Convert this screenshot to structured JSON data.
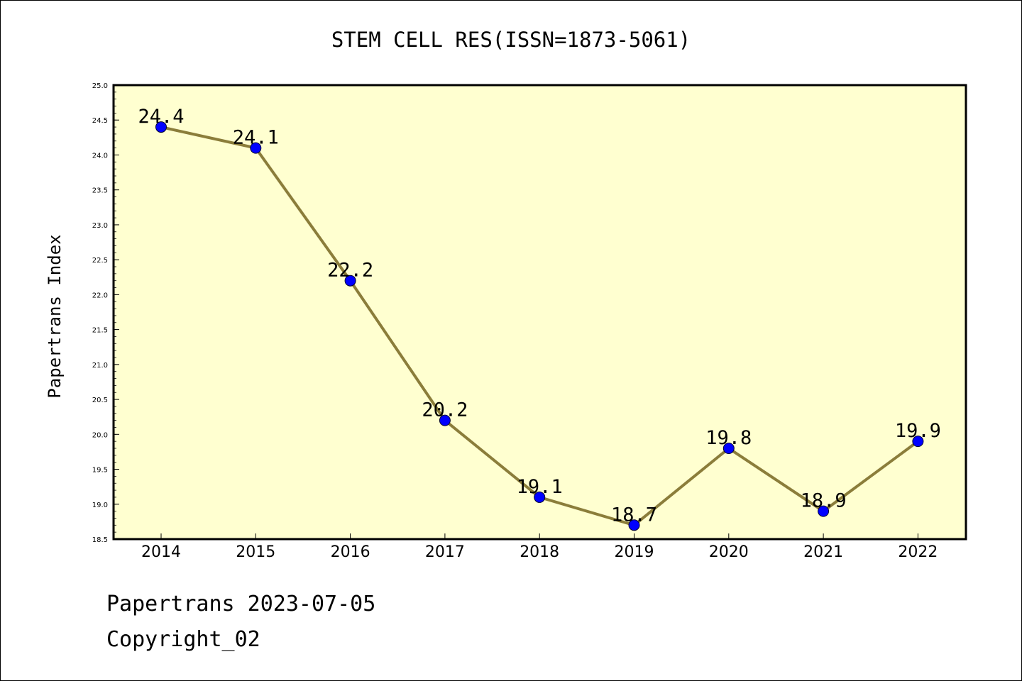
{
  "footer": {
    "line1": "Papertrans 2023-07-05",
    "line2": "Copyright_02"
  },
  "chart_data": {
    "type": "line",
    "title": "STEM CELL RES(ISSN=1873-5061)",
    "xlabel": "",
    "ylabel": "Papertrans Index",
    "categories": [
      "2014",
      "2015",
      "2016",
      "2017",
      "2018",
      "2019",
      "2020",
      "2021",
      "2022"
    ],
    "values": [
      24.4,
      24.1,
      22.2,
      20.2,
      19.1,
      18.7,
      19.8,
      18.9,
      19.9
    ],
    "data_labels": [
      "24.4",
      "24.1",
      "22.2",
      "20.2",
      "19.1",
      "18.7",
      "19.8",
      "18.9",
      "19.9"
    ],
    "ylim": [
      18.5,
      25.0
    ],
    "yticks": [
      "18.5",
      "19.0",
      "19.5",
      "20.0",
      "20.5",
      "21.0",
      "21.5",
      "22.0",
      "22.5",
      "23.0",
      "23.5",
      "24.0",
      "24.5",
      "25.0"
    ],
    "grid": false,
    "colors": {
      "plot_background": "#ffffd0",
      "line": "#8b7d3a",
      "marker": "#0000ff"
    }
  }
}
